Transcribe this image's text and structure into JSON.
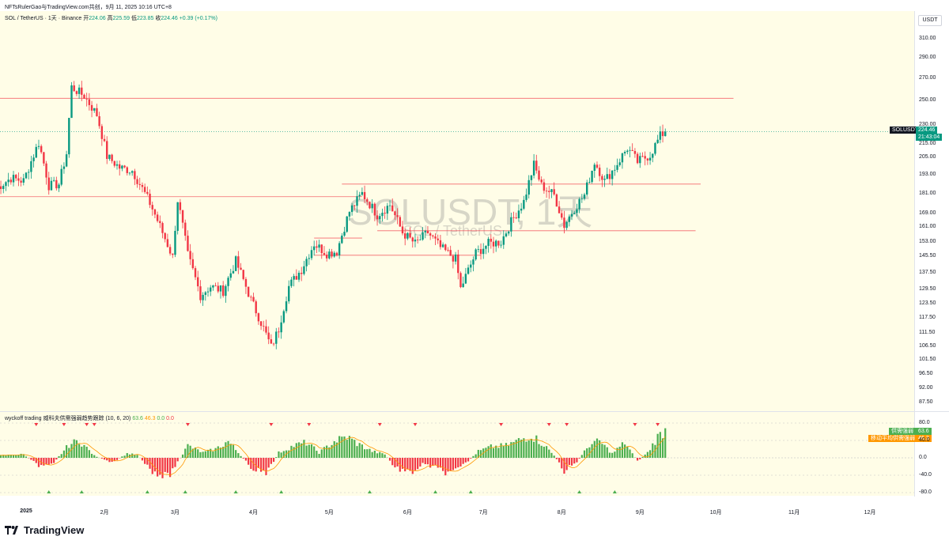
{
  "header": {
    "line1": "NFTsRulerGao与TradingView.com共创，9月 11, 2025 10:16 UTC+8",
    "pair": "SOL / TetherUS · 1天 · Binance",
    "open_label": "开",
    "open": "224.06",
    "high_label": "高",
    "high": "225.59",
    "low_label": "低",
    "low": "223.85",
    "close_label": "收",
    "close": "224.46",
    "change": "+0.39 (+0.17%)"
  },
  "watermark": {
    "line1": "SOLUSDT, 1天",
    "line2": "SOL / TetherUS"
  },
  "currency": "USDT",
  "price_labels": {
    "symbol": "SOLUSDT",
    "last": "224.46",
    "countdown": "21:43:04"
  },
  "indicator": {
    "title": "wyckoff trading 威科夫供需强弱趋势跟踪 (10, 6, 20)",
    "v1": "63.6",
    "v2": "46.3",
    "v3": "0.0",
    "v4": "0.0",
    "badge1_label": "供需强弱",
    "badge1_value": "63.6",
    "badge2_label": "移动平均供需强弱",
    "badge2_value": "46.3"
  },
  "colors": {
    "up": "#089981",
    "down": "#f23645",
    "hist_up": "#4caf50",
    "hist_down": "#f23645",
    "ma": "#ff9800",
    "level": "#f23645",
    "bg": "#fffde7"
  },
  "brand": "TradingView",
  "chart_data": [
    {
      "type": "candlestick",
      "title": "SOL / TetherUS · 1天 · Binance",
      "y_ticks": [
        310,
        290,
        270,
        250,
        230,
        215,
        205,
        193,
        181,
        169,
        161,
        153,
        145.5,
        137.5,
        129.5,
        123.5,
        117.5,
        111.5,
        106.5,
        101.5,
        96.5,
        92,
        87.5
      ],
      "y_tick_labels": [
        "310.00",
        "290.00",
        "270.00",
        "250.00",
        "230.00",
        "215.00",
        "205.00",
        "193.00",
        "181.00",
        "169.00",
        "161.00",
        "153.00",
        "145.50",
        "137.50",
        "129.50",
        "123.50",
        "117.50",
        "111.50",
        "106.50",
        "101.50",
        "96.50",
        "92.00",
        "87.50"
      ],
      "x_tick_labels": [
        "2025",
        "2月",
        "3月",
        "4月",
        "5月",
        "6月",
        "7月",
        "8月",
        "9月",
        "10月",
        "11月",
        "12月"
      ],
      "x_tick_dates": [
        "2025-01-01",
        "2025-02-01",
        "2025-03-01",
        "2025-04-01",
        "2025-05-01",
        "2025-06-01",
        "2025-07-01",
        "2025-08-01",
        "2025-09-01",
        "2025-10-01",
        "2025-11-01",
        "2025-12-01"
      ],
      "x_range": [
        "2024-12-20",
        "2026-01-01"
      ],
      "series_points": [
        [
          "2024-12-20",
          184
        ],
        [
          "2024-12-26",
          191
        ],
        [
          "2024-12-31",
          189
        ],
        [
          "2025-01-06",
          216
        ],
        [
          "2025-01-10",
          186
        ],
        [
          "2025-01-14",
          187
        ],
        [
          "2025-01-17",
          208
        ],
        [
          "2025-01-19",
          262
        ],
        [
          "2025-01-24",
          254
        ],
        [
          "2025-01-29",
          238
        ],
        [
          "2025-02-02",
          206
        ],
        [
          "2025-02-07",
          198
        ],
        [
          "2025-02-12",
          196
        ],
        [
          "2025-02-19",
          175
        ],
        [
          "2025-02-24",
          158
        ],
        [
          "2025-02-28",
          145
        ],
        [
          "2025-03-02",
          177
        ],
        [
          "2025-03-06",
          146
        ],
        [
          "2025-03-11",
          127
        ],
        [
          "2025-03-15",
          131
        ],
        [
          "2025-03-20",
          129
        ],
        [
          "2025-03-25",
          143
        ],
        [
          "2025-03-31",
          125
        ],
        [
          "2025-04-03",
          118
        ],
        [
          "2025-04-08",
          106
        ],
        [
          "2025-04-11",
          113
        ],
        [
          "2025-04-15",
          131
        ],
        [
          "2025-04-20",
          139
        ],
        [
          "2025-04-25",
          152
        ],
        [
          "2025-04-30",
          147
        ],
        [
          "2025-05-04",
          148
        ],
        [
          "2025-05-09",
          170
        ],
        [
          "2025-05-14",
          181
        ],
        [
          "2025-05-20",
          168
        ],
        [
          "2025-05-25",
          174
        ],
        [
          "2025-05-30",
          158
        ],
        [
          "2025-06-04",
          152
        ],
        [
          "2025-06-09",
          158
        ],
        [
          "2025-06-14",
          150
        ],
        [
          "2025-06-20",
          144
        ],
        [
          "2025-06-22",
          130
        ],
        [
          "2025-06-28",
          147
        ],
        [
          "2025-07-03",
          152
        ],
        [
          "2025-07-08",
          153
        ],
        [
          "2025-07-12",
          164
        ],
        [
          "2025-07-17",
          176
        ],
        [
          "2025-07-21",
          200
        ],
        [
          "2025-07-24",
          186
        ],
        [
          "2025-07-29",
          180
        ],
        [
          "2025-08-02",
          162
        ],
        [
          "2025-08-06",
          172
        ],
        [
          "2025-08-10",
          180
        ],
        [
          "2025-08-14",
          202
        ],
        [
          "2025-08-18",
          189
        ],
        [
          "2025-08-22",
          198
        ],
        [
          "2025-08-27",
          212
        ],
        [
          "2025-08-31",
          202
        ],
        [
          "2025-09-05",
          207
        ],
        [
          "2025-09-09",
          221
        ],
        [
          "2025-09-11",
          224.46
        ]
      ],
      "horizontal_levels": [
        {
          "price": 252,
          "from": "2024-12-20",
          "to": "2025-10-08"
        },
        {
          "price": 187,
          "from": "2025-05-06",
          "to": "2025-09-25"
        },
        {
          "price": 179,
          "from": "2024-12-20",
          "to": "2025-05-14"
        },
        {
          "price": 159,
          "from": "2025-05-20",
          "to": "2025-09-23"
        },
        {
          "price": 155,
          "from": "2025-04-25",
          "to": "2025-05-14"
        },
        {
          "price": 146,
          "from": "2025-04-25",
          "to": "2025-06-30"
        }
      ]
    },
    {
      "type": "histogram",
      "title": "wyckoff trading 威科夫供需强弱趋势跟踪 (10, 6, 20)",
      "y_ticks": [
        80,
        40,
        0,
        -40,
        -80
      ],
      "y_tick_labels": [
        "80.0",
        "40.0",
        "0.0",
        "-40.0",
        "-80.0"
      ],
      "series": [
        {
          "name": "供需强弱",
          "last": 63.6
        },
        {
          "name": "移动平均供需强弱",
          "last": 46.3
        }
      ],
      "series_points": [
        [
          "2024-12-20",
          5
        ],
        [
          "2024-12-31",
          8
        ],
        [
          "2025-01-06",
          -18
        ],
        [
          "2025-01-12",
          -10
        ],
        [
          "2025-01-18",
          30
        ],
        [
          "2025-01-22",
          40
        ],
        [
          "2025-01-28",
          5
        ],
        [
          "2025-02-04",
          -12
        ],
        [
          "2025-02-10",
          10
        ],
        [
          "2025-02-14",
          6
        ],
        [
          "2025-02-20",
          -30
        ],
        [
          "2025-02-26",
          -45
        ],
        [
          "2025-03-02",
          -10
        ],
        [
          "2025-03-06",
          28
        ],
        [
          "2025-03-12",
          12
        ],
        [
          "2025-03-17",
          20
        ],
        [
          "2025-03-22",
          38
        ],
        [
          "2025-03-27",
          5
        ],
        [
          "2025-03-31",
          -22
        ],
        [
          "2025-04-06",
          -38
        ],
        [
          "2025-04-11",
          12
        ],
        [
          "2025-04-17",
          28
        ],
        [
          "2025-04-22",
          35
        ],
        [
          "2025-04-27",
          12
        ],
        [
          "2025-05-03",
          38
        ],
        [
          "2025-05-08",
          48
        ],
        [
          "2025-05-13",
          30
        ],
        [
          "2025-05-18",
          15
        ],
        [
          "2025-05-23",
          8
        ],
        [
          "2025-05-27",
          -22
        ],
        [
          "2025-06-02",
          -36
        ],
        [
          "2025-06-07",
          -15
        ],
        [
          "2025-06-12",
          -22
        ],
        [
          "2025-06-18",
          -38
        ],
        [
          "2025-06-23",
          -18
        ],
        [
          "2025-06-29",
          15
        ],
        [
          "2025-07-04",
          25
        ],
        [
          "2025-07-10",
          28
        ],
        [
          "2025-07-15",
          40
        ],
        [
          "2025-07-20",
          52
        ],
        [
          "2025-07-25",
          30
        ],
        [
          "2025-07-29",
          5
        ],
        [
          "2025-08-02",
          -30
        ],
        [
          "2025-08-07",
          -10
        ],
        [
          "2025-08-12",
          30
        ],
        [
          "2025-08-16",
          38
        ],
        [
          "2025-08-21",
          10
        ],
        [
          "2025-08-26",
          35
        ],
        [
          "2025-08-31",
          -8
        ],
        [
          "2025-09-04",
          12
        ],
        [
          "2025-09-08",
          48
        ],
        [
          "2025-09-11",
          63.6
        ]
      ],
      "up_markers": [
        "2025-01-10",
        "2025-01-23",
        "2025-02-18",
        "2025-03-05",
        "2025-03-25",
        "2025-04-12",
        "2025-05-17",
        "2025-06-12",
        "2025-06-26",
        "2025-08-08",
        "2025-08-22"
      ],
      "down_markers": [
        "2025-01-05",
        "2025-01-16",
        "2025-01-25",
        "2025-01-28",
        "2025-03-06",
        "2025-04-08",
        "2025-04-23",
        "2025-05-21",
        "2025-06-04",
        "2025-07-08",
        "2025-07-27",
        "2025-08-03",
        "2025-08-30",
        "2025-09-08"
      ]
    }
  ]
}
